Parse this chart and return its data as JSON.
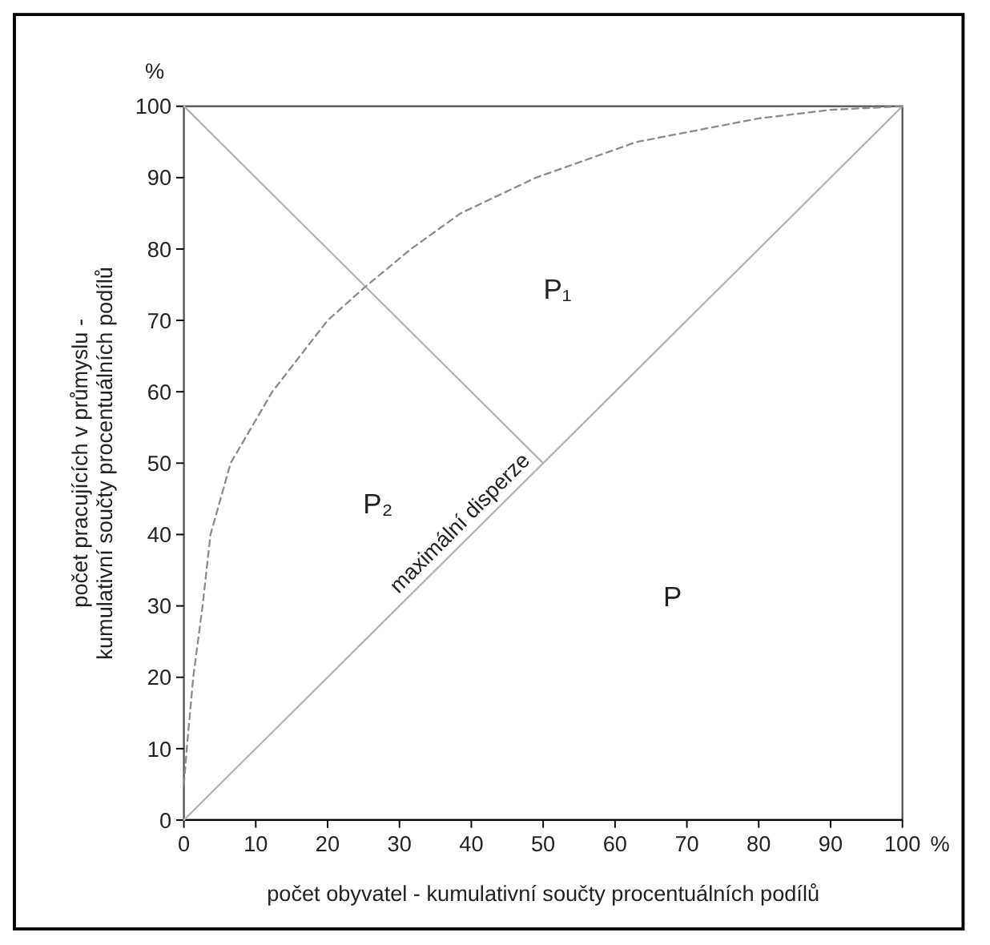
{
  "chart_data": {
    "type": "line",
    "xlabel": "počet obyvatel - kumulativní součty procentuálních podílů",
    "ylabel": "počet pracujících v průmyslu -\nkumulativní součty procentuálních podílů",
    "xlim": [
      0,
      100
    ],
    "ylim": [
      0,
      100
    ],
    "xticks": [
      0,
      10,
      20,
      30,
      40,
      50,
      60,
      70,
      80,
      90,
      100
    ],
    "yticks": [
      0,
      10,
      20,
      30,
      40,
      50,
      60,
      70,
      80,
      90,
      100
    ],
    "grid": false,
    "series": [
      {
        "color": "#b4b4b4",
        "line_style": "solid",
        "x": [
          0,
          100
        ],
        "values": [
          0,
          100
        ]
      },
      {
        "color": "#b4b4b4",
        "line_style": "solid",
        "x": [
          0,
          50
        ],
        "values": [
          100,
          50
        ]
      },
      {
        "color": "#8c8c8c",
        "line_style": "dashed",
        "x": [
          0,
          0.4,
          1.3,
          2.6,
          3.7,
          6.5,
          12.3,
          20,
          25,
          31.6,
          38.5,
          49,
          63,
          80,
          90,
          100
        ],
        "values": [
          5,
          10,
          20,
          30,
          40,
          50,
          60,
          70,
          74.5,
          80,
          85,
          90,
          95,
          98.3,
          99.5,
          100
        ]
      }
    ],
    "annotations": [
      "%",
      "%",
      "P₁",
      "P₂",
      "P",
      {
        "text": "maximální disperze",
        "x": 40,
        "y": 40
      }
    ]
  }
}
